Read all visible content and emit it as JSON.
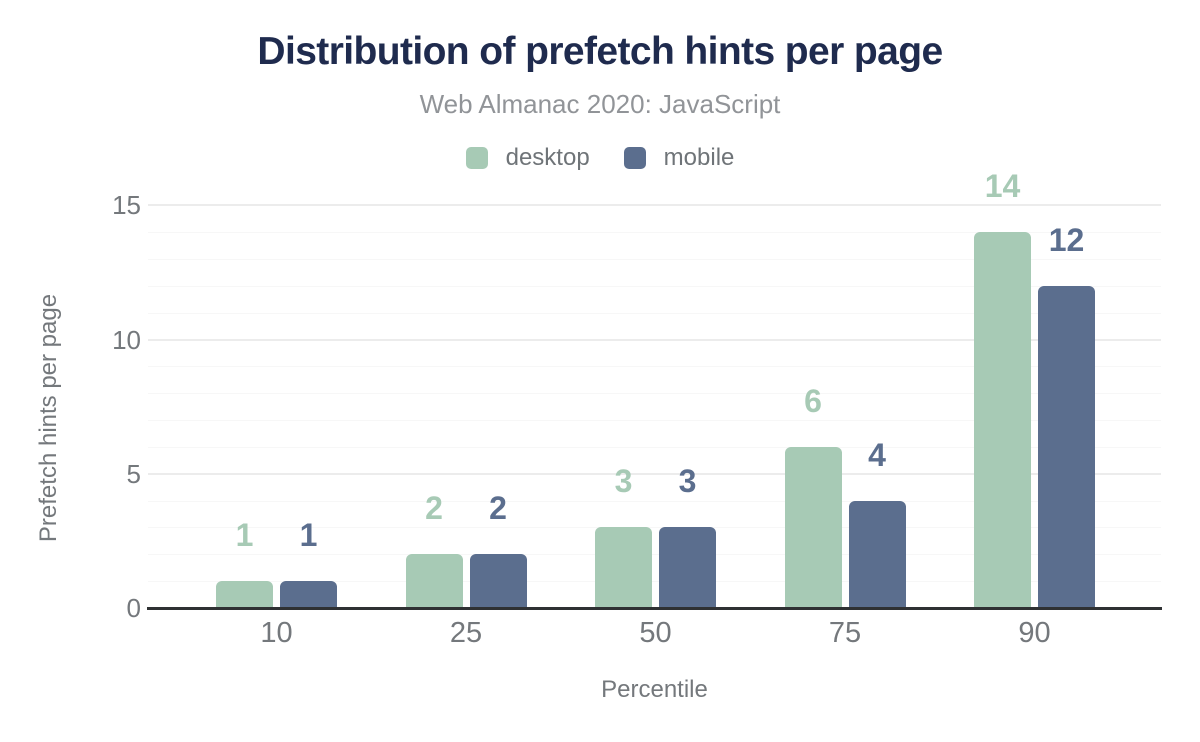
{
  "chart_data": {
    "type": "bar",
    "title": "Distribution of prefetch hints per page",
    "subtitle": "Web Almanac 2020: JavaScript",
    "categories": [
      "10",
      "25",
      "50",
      "75",
      "90"
    ],
    "series": [
      {
        "name": "desktop",
        "color": "#a7cab5",
        "values": [
          1,
          2,
          3,
          6,
          14
        ]
      },
      {
        "name": "mobile",
        "color": "#5b6e8e",
        "values": [
          1,
          2,
          3,
          4,
          12
        ]
      }
    ],
    "xlabel": "Percentile",
    "ylabel": "Prefetch hints per page",
    "ylim": [
      0,
      15
    ],
    "yticks": [
      0,
      5,
      10,
      15
    ],
    "minor_grid_step": 1,
    "grid": true,
    "legend_position": "top",
    "value_labels": true
  },
  "colors": {
    "title": "#1f2b4e",
    "subtitle": "#919498",
    "legend_text": "#6f7478",
    "tick": "#74787c",
    "axis_line": "#2f3133",
    "grid_major": "#ececec",
    "grid_minor": "#f7f7f7",
    "background": "#ffffff"
  }
}
